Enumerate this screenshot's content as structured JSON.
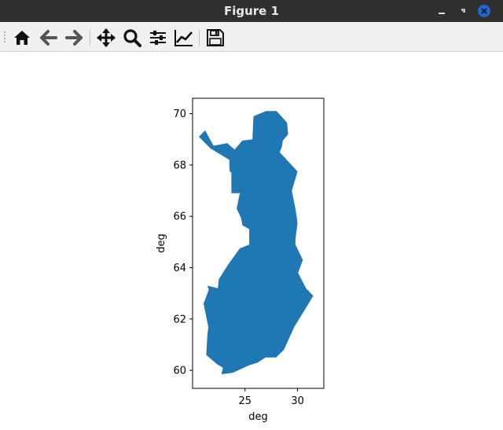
{
  "window": {
    "title": "Figure 1",
    "buttons": [
      {
        "name": "minimize-button",
        "icon": "minimize-icon"
      },
      {
        "name": "restore-button",
        "icon": "restore-icon"
      },
      {
        "name": "close-button",
        "icon": "close-icon",
        "color": "#1e64d2"
      }
    ]
  },
  "toolbar": {
    "tools": [
      {
        "name": "home-button",
        "icon": "home-icon"
      },
      {
        "name": "back-button",
        "icon": "arrow-left-icon"
      },
      {
        "name": "forward-button",
        "icon": "arrow-right-icon"
      },
      {
        "name": "pan-button",
        "icon": "move-icon"
      },
      {
        "name": "zoom-button",
        "icon": "magnifier-icon"
      },
      {
        "name": "configure-subplots-button",
        "icon": "sliders-icon"
      },
      {
        "name": "edit-axis-button",
        "icon": "line-chart-icon"
      },
      {
        "name": "save-button",
        "icon": "floppy-disk-icon"
      }
    ]
  },
  "chart_data": {
    "type": "area",
    "title": "",
    "xlabel": "deg",
    "ylabel": "deg",
    "xlim": [
      20.0,
      32.5
    ],
    "ylim": [
      59.3,
      70.6
    ],
    "xticks": [
      25,
      30
    ],
    "yticks": [
      60,
      62,
      64,
      66,
      68,
      70
    ],
    "grid": false,
    "fill_color": "#1f77b4",
    "polygon": [
      [
        20.6,
        69.1
      ],
      [
        21.2,
        69.35
      ],
      [
        22.0,
        68.75
      ],
      [
        23.3,
        68.85
      ],
      [
        24.0,
        68.6
      ],
      [
        24.75,
        68.95
      ],
      [
        25.7,
        69.0
      ],
      [
        25.8,
        69.9
      ],
      [
        27.0,
        70.1
      ],
      [
        28.0,
        70.1
      ],
      [
        29.0,
        69.65
      ],
      [
        29.1,
        69.2
      ],
      [
        28.6,
        68.95
      ],
      [
        28.5,
        68.7
      ],
      [
        28.3,
        68.5
      ],
      [
        30.0,
        67.75
      ],
      [
        29.45,
        67.0
      ],
      [
        29.8,
        66.3
      ],
      [
        30.0,
        65.75
      ],
      [
        29.8,
        65.1
      ],
      [
        29.8,
        64.9
      ],
      [
        30.5,
        64.3
      ],
      [
        30.05,
        63.8
      ],
      [
        30.8,
        63.2
      ],
      [
        31.5,
        62.9
      ],
      [
        29.7,
        61.7
      ],
      [
        28.7,
        60.8
      ],
      [
        27.95,
        60.5
      ],
      [
        26.95,
        60.5
      ],
      [
        26.2,
        60.3
      ],
      [
        25.4,
        60.2
      ],
      [
        24.6,
        60.05
      ],
      [
        23.8,
        59.9
      ],
      [
        22.75,
        59.85
      ],
      [
        22.9,
        60.1
      ],
      [
        22.3,
        60.25
      ],
      [
        21.3,
        60.6
      ],
      [
        21.4,
        61.3
      ],
      [
        21.5,
        61.7
      ],
      [
        21.05,
        62.6
      ],
      [
        21.55,
        63.15
      ],
      [
        21.4,
        63.3
      ],
      [
        22.4,
        63.2
      ],
      [
        22.5,
        63.55
      ],
      [
        23.35,
        64.1
      ],
      [
        24.5,
        64.75
      ],
      [
        25.4,
        64.9
      ],
      [
        25.4,
        65.5
      ],
      [
        24.75,
        65.65
      ],
      [
        24.6,
        65.95
      ],
      [
        24.2,
        66.3
      ],
      [
        24.5,
        66.9
      ],
      [
        23.7,
        66.9
      ],
      [
        23.7,
        67.7
      ],
      [
        23.55,
        67.75
      ],
      [
        23.5,
        67.95
      ],
      [
        23.5,
        68.2
      ],
      [
        21.7,
        68.65
      ]
    ]
  }
}
